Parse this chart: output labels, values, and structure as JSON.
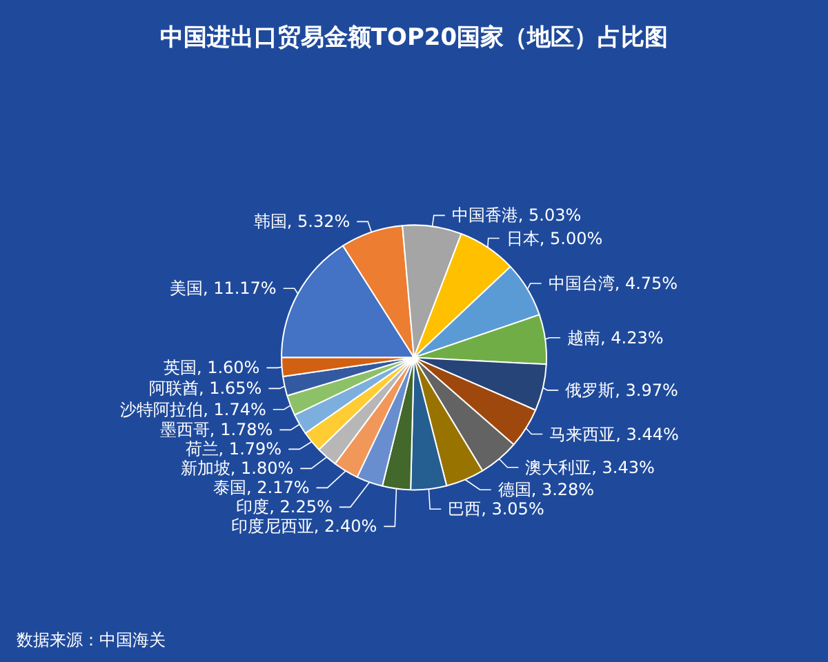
{
  "chart_data": {
    "type": "pie",
    "title": "中国进出口贸易金额TOP20国家（地区）占比图",
    "categories": [
      "美国",
      "韩国",
      "中国香港",
      "日本",
      "中国台湾",
      "越南",
      "俄罗斯",
      "马来西亚",
      "澳大利亚",
      "德国",
      "巴西",
      "印度尼西亚",
      "印度",
      "泰国",
      "新加坡",
      "荷兰",
      "墨西哥",
      "沙特阿拉伯",
      "阿联酋",
      "英国"
    ],
    "values": [
      11.17,
      5.32,
      5.03,
      5.0,
      4.75,
      4.23,
      3.97,
      3.44,
      3.43,
      3.28,
      3.05,
      2.4,
      2.25,
      2.17,
      1.8,
      1.79,
      1.78,
      1.74,
      1.65,
      1.6
    ],
    "value_labels": [
      "11.17%",
      "5.32%",
      "5.03%",
      "5.00%",
      "4.75%",
      "4.23%",
      "3.97%",
      "3.44%",
      "3.43%",
      "3.28%",
      "3.05%",
      "2.40%",
      "2.25%",
      "2.17%",
      "1.80%",
      "1.79%",
      "1.78%",
      "1.74%",
      "1.65%",
      "1.60%"
    ],
    "colors": [
      "#4472c4",
      "#ed7d31",
      "#a5a5a5",
      "#ffc000",
      "#5b9bd5",
      "#70ad47",
      "#264478",
      "#9e480e",
      "#636363",
      "#997300",
      "#255e91",
      "#43682b",
      "#698ed0",
      "#f1975a",
      "#b7b7b7",
      "#ffcd33",
      "#7cafdd",
      "#8cc168",
      "#335aa1",
      "#d26012"
    ],
    "legend": false,
    "annotations": [
      "数据来源：中国海关"
    ]
  }
}
